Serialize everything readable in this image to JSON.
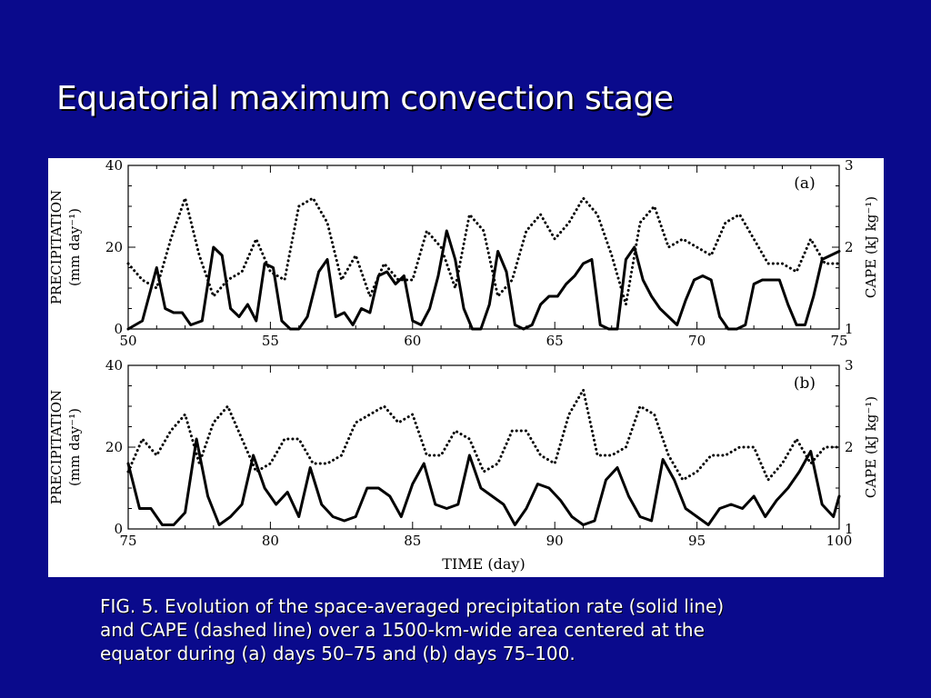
{
  "slide": {
    "title": "Equatorial maximum convection stage",
    "caption_lines": [
      "FIG. 5. Evolution of the space-averaged precipitation rate (solid line)",
      "and CAPE (dashed line) over a 1500-km-wide area centered at the",
      "equator during (a) days 50–75 and (b) days 75–100."
    ]
  },
  "colors": {
    "background": "#0a0a8c",
    "panel": "#ffffff",
    "precip_line": "#000000",
    "cape_line": "#000000"
  },
  "chart_data": [
    {
      "type": "line",
      "panel_label": "(a)",
      "xlim": [
        50,
        75
      ],
      "xticks": [
        "50",
        "55",
        "60",
        "65",
        "70",
        "75"
      ],
      "ylim_left": [
        0,
        40
      ],
      "yticks_left": [
        "0",
        "20",
        "40"
      ],
      "ylim_right": [
        1,
        3
      ],
      "yticks_right": [
        "1",
        "2",
        "3"
      ],
      "ylabel_left_line1": "PRECIPITATION",
      "ylabel_left_line2": "(mm day⁻¹)",
      "ylabel_right": "CAPE (kJ kg⁻¹)",
      "series": [
        {
          "style": "solid",
          "axis": "left",
          "x": [
            50,
            50.5,
            51,
            51.3,
            51.6,
            51.9,
            52.2,
            52.6,
            53,
            53.3,
            53.6,
            53.9,
            54.2,
            54.5,
            54.8,
            55.1,
            55.4,
            55.7,
            56,
            56.3,
            56.7,
            57,
            57.3,
            57.6,
            57.9,
            58.2,
            58.5,
            58.8,
            59.1,
            59.4,
            59.7,
            60,
            60.3,
            60.6,
            60.9,
            61.2,
            61.5,
            61.8,
            62.1,
            62.4,
            62.7,
            63,
            63.3,
            63.6,
            63.9,
            64.2,
            64.5,
            64.8,
            65.1,
            65.4,
            65.7,
            66,
            66.3,
            66.6,
            66.9,
            67.2,
            67.5,
            67.8,
            68.1,
            68.4,
            68.7,
            69,
            69.3,
            69.6,
            69.9,
            70.2,
            70.5,
            70.8,
            71.1,
            71.4,
            71.7,
            72,
            72.3,
            72.6,
            72.9,
            73.2,
            73.5,
            73.8,
            74.1,
            74.4,
            74.7,
            75
          ],
          "y": [
            0,
            2,
            15,
            5,
            4,
            4,
            1,
            2,
            20,
            18,
            5,
            3,
            6,
            2,
            16,
            15,
            2,
            0,
            0,
            3,
            14,
            17,
            3,
            4,
            1,
            5,
            4,
            13,
            14,
            11,
            13,
            2,
            1,
            5,
            13,
            24,
            17,
            5,
            0,
            0,
            6,
            19,
            14,
            1,
            0,
            1,
            6,
            8,
            8,
            11,
            13,
            16,
            17,
            1,
            0,
            0,
            17,
            20,
            12,
            8,
            5,
            3,
            1,
            7,
            12,
            13,
            12,
            3,
            0,
            0,
            1,
            11,
            12,
            12,
            12,
            6,
            1,
            1,
            8,
            17,
            18,
            19
          ]
        },
        {
          "style": "dotted",
          "axis": "right",
          "x": [
            50,
            50.5,
            51,
            51.5,
            52,
            52.5,
            53,
            53.5,
            54,
            54.5,
            55,
            55.5,
            56,
            56.5,
            57,
            57.5,
            58,
            58.5,
            59,
            59.5,
            60,
            60.5,
            61,
            61.5,
            62,
            62.5,
            63,
            63.5,
            64,
            64.5,
            65,
            65.5,
            66,
            66.5,
            67,
            67.5,
            68,
            68.5,
            69,
            69.5,
            70,
            70.5,
            71,
            71.5,
            72,
            72.5,
            73,
            73.5,
            74,
            74.5,
            75
          ],
          "y": [
            1.8,
            1.6,
            1.5,
            2.1,
            2.6,
            1.9,
            1.4,
            1.6,
            1.7,
            2.1,
            1.7,
            1.6,
            2.5,
            2.6,
            2.3,
            1.6,
            1.9,
            1.4,
            1.8,
            1.6,
            1.6,
            2.2,
            2.0,
            1.5,
            2.4,
            2.2,
            1.4,
            1.6,
            2.2,
            2.4,
            2.1,
            2.3,
            2.6,
            2.4,
            1.9,
            1.3,
            2.3,
            2.5,
            2.0,
            2.1,
            2.0,
            1.9,
            2.3,
            2.4,
            2.1,
            1.8,
            1.8,
            1.7,
            2.1,
            1.8,
            1.8
          ]
        }
      ]
    },
    {
      "type": "line",
      "panel_label": "(b)",
      "xlim": [
        75,
        100
      ],
      "xticks": [
        "75",
        "80",
        "85",
        "90",
        "95",
        "100"
      ],
      "ylim_left": [
        0,
        40
      ],
      "yticks_left": [
        "0",
        "20",
        "40"
      ],
      "ylim_right": [
        1,
        3
      ],
      "yticks_right": [
        "1",
        "2",
        "3"
      ],
      "ylabel_left_line1": "PRECIPITATION",
      "ylabel_left_line2": "(mm day⁻¹)",
      "ylabel_right": "CAPE (kJ kg⁻¹)",
      "xlabel": "TIME (day)",
      "series": [
        {
          "style": "solid",
          "axis": "left",
          "x": [
            75,
            75.4,
            75.8,
            76.2,
            76.6,
            77,
            77.4,
            77.8,
            78.2,
            78.6,
            79,
            79.4,
            79.8,
            80.2,
            80.6,
            81,
            81.4,
            81.8,
            82.2,
            82.6,
            83,
            83.4,
            83.8,
            84.2,
            84.6,
            85,
            85.4,
            85.8,
            86.2,
            86.6,
            87,
            87.4,
            87.8,
            88.2,
            88.6,
            89,
            89.4,
            89.8,
            90.2,
            90.6,
            91,
            91.4,
            91.8,
            92.2,
            92.6,
            93,
            93.4,
            93.8,
            94.2,
            94.6,
            95,
            95.4,
            95.8,
            96.2,
            96.6,
            97,
            97.4,
            97.8,
            98.2,
            98.6,
            99,
            99.4,
            99.8,
            100
          ],
          "y": [
            16,
            5,
            5,
            1,
            1,
            4,
            22,
            8,
            1,
            3,
            6,
            18,
            10,
            6,
            9,
            3,
            15,
            6,
            3,
            2,
            3,
            10,
            10,
            8,
            3,
            11,
            16,
            6,
            5,
            6,
            18,
            10,
            8,
            6,
            1,
            5,
            11,
            10,
            7,
            3,
            1,
            2,
            12,
            15,
            8,
            3,
            2,
            17,
            12,
            5,
            3,
            1,
            5,
            6,
            5,
            8,
            3,
            7,
            10,
            14,
            19,
            6,
            3,
            8
          ]
        },
        {
          "style": "dotted",
          "axis": "right",
          "x": [
            75,
            75.5,
            76,
            76.5,
            77,
            77.5,
            78,
            78.5,
            79,
            79.5,
            80,
            80.5,
            81,
            81.5,
            82,
            82.5,
            83,
            83.5,
            84,
            84.5,
            85,
            85.5,
            86,
            86.5,
            87,
            87.5,
            88,
            88.5,
            89,
            89.5,
            90,
            90.5,
            91,
            91.5,
            92,
            92.5,
            93,
            93.5,
            94,
            94.5,
            95,
            95.5,
            96,
            96.5,
            97,
            97.5,
            98,
            98.5,
            99,
            99.5,
            100
          ],
          "y": [
            1.7,
            2.1,
            1.9,
            2.2,
            2.4,
            1.8,
            2.3,
            2.5,
            2.1,
            1.7,
            1.8,
            2.1,
            2.1,
            1.8,
            1.8,
            1.9,
            2.3,
            2.4,
            2.5,
            2.3,
            2.4,
            1.9,
            1.9,
            2.2,
            2.1,
            1.7,
            1.8,
            2.2,
            2.2,
            1.9,
            1.8,
            2.4,
            2.7,
            1.9,
            1.9,
            2.0,
            2.5,
            2.4,
            1.9,
            1.6,
            1.7,
            1.9,
            1.9,
            2.0,
            2.0,
            1.6,
            1.8,
            2.1,
            1.8,
            2.0,
            2.0
          ]
        }
      ]
    }
  ]
}
